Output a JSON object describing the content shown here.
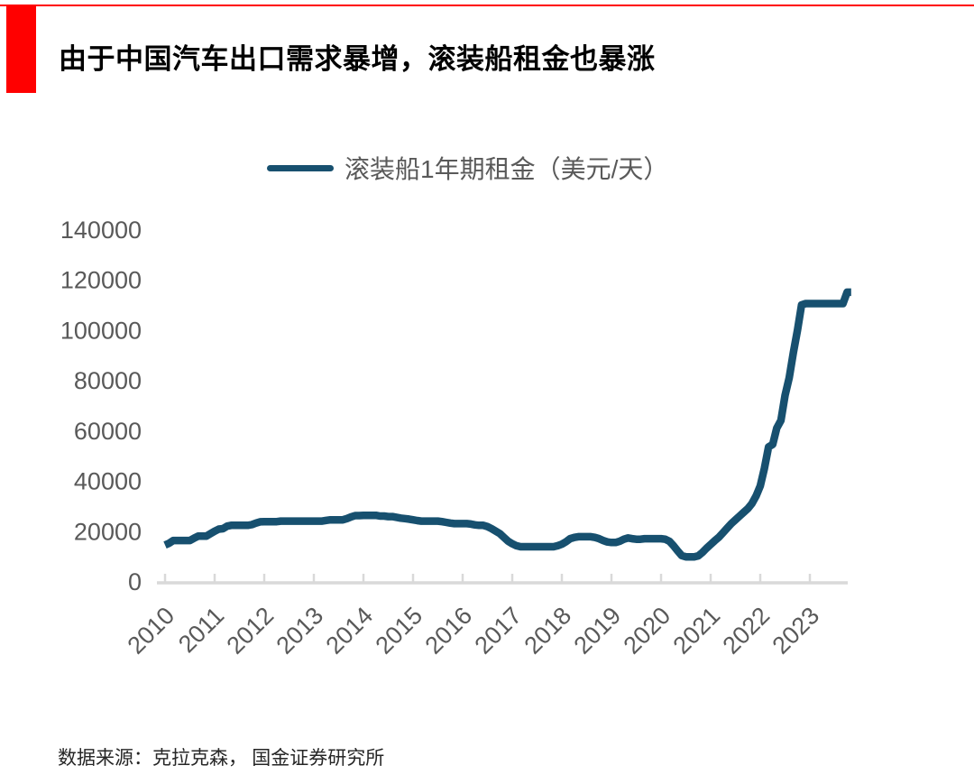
{
  "page": {
    "background_color": "#FFFFFF",
    "accent_red": "#FF0000"
  },
  "header": {
    "title": "由于中国汽车出口需求暴增，滚装船租金也暴涨"
  },
  "legend": {
    "label": "滚装船1年期租金（美元/天）",
    "swatch_color": "#17506F"
  },
  "footer": {
    "source": "数据来源：克拉克森，  国金证券研究所"
  },
  "chart_data": {
    "type": "line",
    "title": "",
    "xlabel": "",
    "ylabel": "",
    "legend_entries": [
      "滚装船1年期租金（美元/天）"
    ],
    "legend_position": "top-center",
    "grid": false,
    "line_color": "#17506F",
    "axis_color": "#D9D9D9",
    "tick_label_color": "#595959",
    "ylim": [
      0,
      140000
    ],
    "yticks": [
      0,
      20000,
      40000,
      60000,
      80000,
      100000,
      120000,
      140000
    ],
    "xticks": [
      "2010",
      "2011",
      "2012",
      "2013",
      "2014",
      "2015",
      "2016",
      "2017",
      "2018",
      "2019",
      "2020",
      "2021",
      "2022",
      "2023"
    ],
    "x_start_year": 2010,
    "x_frequency": "monthly",
    "x_end": "2023-11",
    "series": [
      {
        "name": "滚装船1年期租金（美元/天）",
        "unit": "美元/天",
        "values": [
          14500,
          15200,
          16300,
          16300,
          16300,
          16300,
          16300,
          17200,
          18000,
          18000,
          18000,
          19000,
          20000,
          20800,
          21000,
          22000,
          22300,
          22300,
          22300,
          22300,
          22300,
          22600,
          23200,
          23700,
          23800,
          23800,
          23800,
          23800,
          24000,
          24000,
          24000,
          24000,
          24000,
          24000,
          24000,
          24000,
          24000,
          24000,
          24000,
          24300,
          24500,
          24500,
          24500,
          24500,
          25000,
          25700,
          26200,
          26200,
          26300,
          26300,
          26300,
          26300,
          26000,
          26000,
          25800,
          25800,
          25500,
          25200,
          25000,
          24800,
          24500,
          24200,
          24000,
          24000,
          24000,
          24000,
          24000,
          23800,
          23500,
          23200,
          23000,
          23000,
          23000,
          23000,
          22800,
          22500,
          22300,
          22300,
          21800,
          21000,
          20000,
          19000,
          17500,
          16000,
          15000,
          14200,
          13800,
          13800,
          13800,
          13800,
          13800,
          13800,
          13800,
          13800,
          13800,
          14200,
          14800,
          15800,
          17000,
          17500,
          17800,
          17800,
          17800,
          17800,
          17500,
          17000,
          16300,
          15700,
          15500,
          15500,
          16000,
          16800,
          17300,
          17000,
          16800,
          16800,
          17000,
          17000,
          17000,
          17000,
          17000,
          16800,
          16000,
          14200,
          12200,
          10300,
          9800,
          9800,
          9800,
          10200,
          11500,
          13200,
          14700,
          16200,
          17600,
          19400,
          21200,
          23000,
          24500,
          26000,
          27500,
          29000,
          31000,
          34000,
          38000,
          45000,
          53500,
          54500,
          61000,
          64000,
          74000,
          81000,
          91000,
          100000,
          110000,
          110500,
          110500,
          110500,
          110500,
          110500,
          110500,
          110500,
          110500,
          110500,
          110500,
          115000,
          115000
        ]
      }
    ]
  }
}
